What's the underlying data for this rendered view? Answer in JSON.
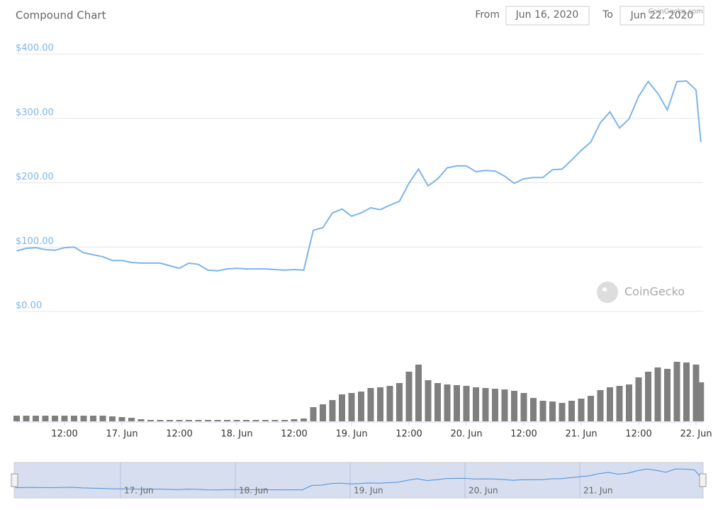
{
  "header": {
    "title": "Compound Chart",
    "from_label": "From",
    "from_date": "Jun 16, 2020",
    "to_label": "To",
    "to_date": "Jun 22, 2020",
    "credit": "CoinGecko.com"
  },
  "chart_data": [
    {
      "type": "line",
      "watermark": "CoinGecko",
      "color": "#7cb5ec",
      "grid": true,
      "x": [
        "2020-06-16T02:00",
        "2020-06-16T04:00",
        "2020-06-16T06:00",
        "2020-06-16T08:00",
        "2020-06-16T10:00",
        "2020-06-16T12:00",
        "2020-06-16T14:00",
        "2020-06-16T16:00",
        "2020-06-16T18:00",
        "2020-06-16T20:00",
        "2020-06-16T22:00",
        "2020-06-17T00:00",
        "2020-06-17T02:00",
        "2020-06-17T04:00",
        "2020-06-17T06:00",
        "2020-06-17T08:00",
        "2020-06-17T10:00",
        "2020-06-17T12:00",
        "2020-06-17T14:00",
        "2020-06-17T16:00",
        "2020-06-17T18:00",
        "2020-06-17T20:00",
        "2020-06-17T22:00",
        "2020-06-18T00:00",
        "2020-06-18T02:00",
        "2020-06-18T04:00",
        "2020-06-18T06:00",
        "2020-06-18T08:00",
        "2020-06-18T10:00",
        "2020-06-18T12:00",
        "2020-06-18T14:00",
        "2020-06-18T16:00",
        "2020-06-18T18:00",
        "2020-06-18T20:00",
        "2020-06-18T22:00",
        "2020-06-19T00:00",
        "2020-06-19T02:00",
        "2020-06-19T04:00",
        "2020-06-19T06:00",
        "2020-06-19T08:00",
        "2020-06-19T10:00",
        "2020-06-19T12:00",
        "2020-06-19T14:00",
        "2020-06-19T16:00",
        "2020-06-19T18:00",
        "2020-06-19T20:00",
        "2020-06-19T22:00",
        "2020-06-20T00:00",
        "2020-06-20T02:00",
        "2020-06-20T04:00",
        "2020-06-20T06:00",
        "2020-06-20T08:00",
        "2020-06-20T10:00",
        "2020-06-20T12:00",
        "2020-06-20T14:00",
        "2020-06-20T16:00",
        "2020-06-20T18:00",
        "2020-06-20T20:00",
        "2020-06-20T22:00",
        "2020-06-21T00:00",
        "2020-06-21T02:00",
        "2020-06-21T04:00",
        "2020-06-21T06:00",
        "2020-06-21T08:00",
        "2020-06-21T10:00",
        "2020-06-21T12:00",
        "2020-06-21T14:00",
        "2020-06-21T16:00",
        "2020-06-21T18:00",
        "2020-06-21T20:00",
        "2020-06-21T22:00",
        "2020-06-22T00:00",
        "2020-06-22T01:00"
      ],
      "values": [
        94,
        98,
        99,
        96,
        95,
        99,
        100,
        91,
        88,
        85,
        79,
        79,
        76,
        75,
        75,
        75,
        71,
        67,
        75,
        73,
        64,
        63,
        66,
        67,
        66,
        66,
        66,
        65,
        64,
        65,
        64,
        126,
        130,
        153,
        159,
        148,
        153,
        161,
        158,
        165,
        171,
        199,
        221,
        195,
        206,
        223,
        226,
        226,
        217,
        219,
        218,
        210,
        199,
        206,
        208,
        208,
        220,
        221,
        235,
        250,
        263,
        293,
        310,
        285,
        299,
        334,
        357,
        339,
        313,
        357,
        358,
        344,
        263
      ],
      "xlim": [
        "2020-06-16T00:00",
        "2020-06-22T02:00"
      ],
      "ylim": [
        0,
        400
      ],
      "yticks": [
        {
          "value": 0,
          "label": "$0.00"
        },
        {
          "value": 100,
          "label": "$100.00"
        },
        {
          "value": 200,
          "label": "$200.00"
        },
        {
          "value": 300,
          "label": "$300.00"
        },
        {
          "value": 400,
          "label": "$400.00"
        }
      ]
    },
    {
      "type": "bar",
      "color": "#7f7f7f",
      "x": [
        "2020-06-16T02:00",
        "2020-06-16T04:00",
        "2020-06-16T06:00",
        "2020-06-16T08:00",
        "2020-06-16T10:00",
        "2020-06-16T12:00",
        "2020-06-16T14:00",
        "2020-06-16T16:00",
        "2020-06-16T18:00",
        "2020-06-16T20:00",
        "2020-06-16T22:00",
        "2020-06-17T00:00",
        "2020-06-17T02:00",
        "2020-06-17T04:00",
        "2020-06-17T06:00",
        "2020-06-17T08:00",
        "2020-06-17T10:00",
        "2020-06-17T12:00",
        "2020-06-17T14:00",
        "2020-06-17T16:00",
        "2020-06-17T18:00",
        "2020-06-17T20:00",
        "2020-06-17T22:00",
        "2020-06-18T00:00",
        "2020-06-18T02:00",
        "2020-06-18T04:00",
        "2020-06-18T06:00",
        "2020-06-18T08:00",
        "2020-06-18T10:00",
        "2020-06-18T12:00",
        "2020-06-18T14:00",
        "2020-06-18T16:00",
        "2020-06-18T18:00",
        "2020-06-18T20:00",
        "2020-06-18T22:00",
        "2020-06-19T00:00",
        "2020-06-19T02:00",
        "2020-06-19T04:00",
        "2020-06-19T06:00",
        "2020-06-19T08:00",
        "2020-06-19T10:00",
        "2020-06-19T12:00",
        "2020-06-19T14:00",
        "2020-06-19T16:00",
        "2020-06-19T18:00",
        "2020-06-19T20:00",
        "2020-06-19T22:00",
        "2020-06-20T00:00",
        "2020-06-20T02:00",
        "2020-06-20T04:00",
        "2020-06-20T06:00",
        "2020-06-20T08:00",
        "2020-06-20T10:00",
        "2020-06-20T12:00",
        "2020-06-20T14:00",
        "2020-06-20T16:00",
        "2020-06-20T18:00",
        "2020-06-20T20:00",
        "2020-06-20T22:00",
        "2020-06-21T00:00",
        "2020-06-21T02:00",
        "2020-06-21T04:00",
        "2020-06-21T06:00",
        "2020-06-21T08:00",
        "2020-06-21T10:00",
        "2020-06-21T12:00",
        "2020-06-21T14:00",
        "2020-06-21T16:00",
        "2020-06-21T18:00",
        "2020-06-21T20:00",
        "2020-06-21T22:00",
        "2020-06-22T00:00",
        "2020-06-22T01:00"
      ],
      "values": [
        8,
        8,
        8,
        8,
        8,
        8,
        8,
        8,
        8,
        8,
        7,
        6,
        5,
        3,
        2,
        2,
        2,
        2,
        2,
        2,
        2,
        2,
        2,
        2,
        2,
        2,
        2,
        2,
        2,
        3,
        4,
        20,
        24,
        30,
        38,
        40,
        42,
        47,
        48,
        50,
        54,
        70,
        80,
        58,
        54,
        52,
        51,
        50,
        48,
        47,
        46,
        45,
        43,
        40,
        33,
        29,
        28,
        26,
        29,
        32,
        36,
        44,
        48,
        50,
        52,
        62,
        70,
        76,
        74,
        84,
        83,
        80,
        55
      ],
      "xlim": [
        "2020-06-16T00:00",
        "2020-06-22T02:00"
      ],
      "ylim": [
        0,
        100
      ],
      "xticks": [
        {
          "value": "2020-06-16T12:00",
          "label": "12:00"
        },
        {
          "value": "2020-06-17T00:00",
          "label": "17. Jun"
        },
        {
          "value": "2020-06-17T12:00",
          "label": "12:00"
        },
        {
          "value": "2020-06-18T00:00",
          "label": "18. Jun"
        },
        {
          "value": "2020-06-18T12:00",
          "label": "12:00"
        },
        {
          "value": "2020-06-19T00:00",
          "label": "19. Jun"
        },
        {
          "value": "2020-06-19T12:00",
          "label": "12:00"
        },
        {
          "value": "2020-06-20T00:00",
          "label": "20. Jun"
        },
        {
          "value": "2020-06-20T12:00",
          "label": "12:00"
        },
        {
          "value": "2020-06-21T00:00",
          "label": "21. Jun"
        },
        {
          "value": "2020-06-21T12:00",
          "label": "12:00"
        },
        {
          "value": "2020-06-22T00:00",
          "label": "22. Jun"
        }
      ]
    }
  ],
  "navigator": {
    "xticks": [
      {
        "value": "2020-06-17T00:00",
        "label": "17. Jun"
      },
      {
        "value": "2020-06-18T00:00",
        "label": "18. Jun"
      },
      {
        "value": "2020-06-19T00:00",
        "label": "19. Jun"
      },
      {
        "value": "2020-06-20T00:00",
        "label": "20. Jun"
      },
      {
        "value": "2020-06-21T00:00",
        "label": "21. Jun"
      }
    ]
  }
}
